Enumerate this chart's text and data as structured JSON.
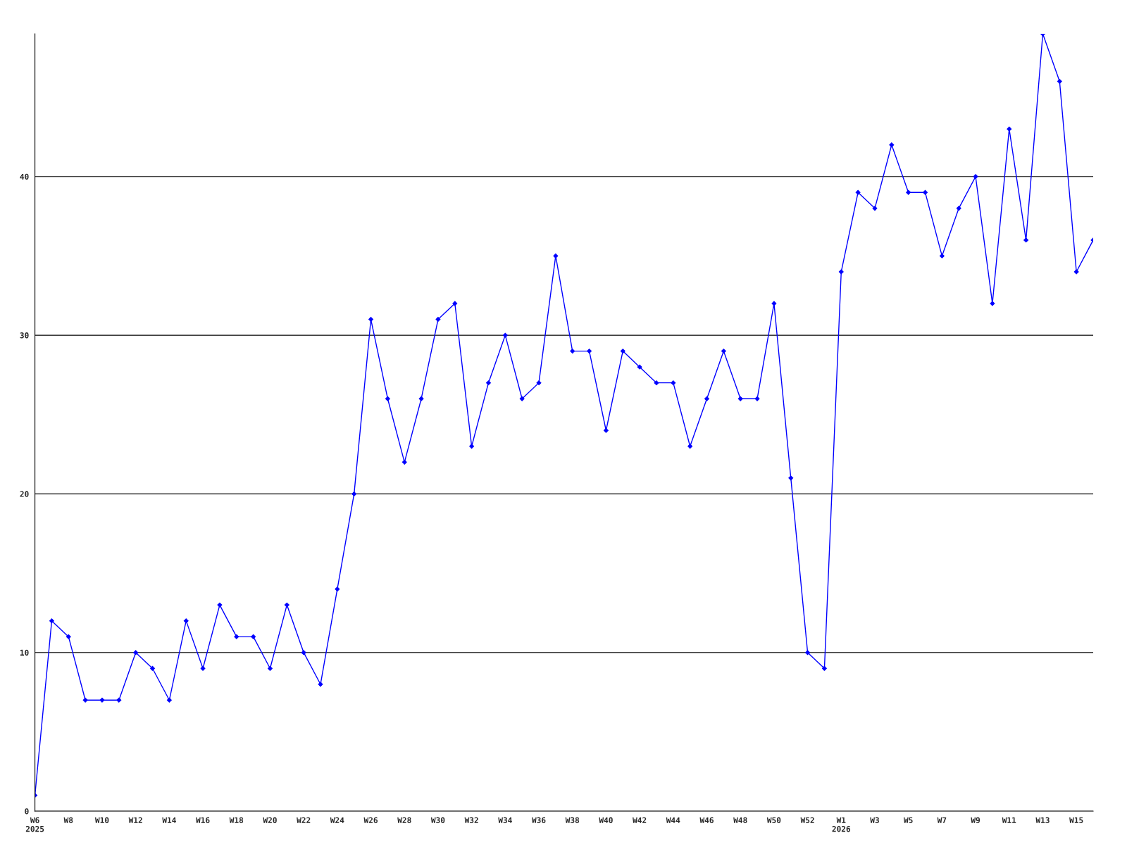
{
  "chart_data": {
    "type": "line",
    "categories": [
      "W6\n2025",
      null,
      "W8",
      null,
      "W10",
      null,
      "W12",
      null,
      "W14",
      null,
      "W16",
      null,
      "W18",
      null,
      "W20",
      null,
      "W22",
      null,
      "W24",
      null,
      "W26",
      null,
      "W28",
      null,
      "W30",
      null,
      "W32",
      null,
      "W34",
      null,
      "W36",
      null,
      "W38",
      null,
      "W40",
      null,
      "W42",
      null,
      "W44",
      null,
      "W46",
      null,
      "W48",
      null,
      "W50",
      null,
      "W52",
      null,
      "W1\n2026",
      null,
      "W3",
      null,
      "W5",
      null,
      "W7",
      null,
      "W9",
      null,
      "W11",
      null,
      "W13",
      null,
      "W15",
      null
    ],
    "series": [
      {
        "color": "#0000ff",
        "values": [
          1,
          12,
          11,
          7,
          7,
          7,
          10,
          9,
          7,
          12,
          9,
          13,
          11,
          11,
          9,
          13,
          10,
          8,
          14,
          20,
          31,
          26,
          22,
          26,
          31,
          32,
          23,
          27,
          30,
          26,
          27,
          35,
          29,
          29,
          24,
          29,
          28,
          27,
          27,
          23,
          26,
          29,
          26,
          26,
          32,
          21,
          10,
          9,
          34,
          39,
          38,
          42,
          39,
          39,
          35,
          38,
          40,
          32,
          43,
          36,
          49,
          46,
          34,
          36
        ]
      }
    ],
    "ylim": [
      0,
      49
    ],
    "yticks": [
      0,
      10,
      20,
      30,
      40
    ],
    "grid": "y",
    "marker": "diamond",
    "line_style": "solid"
  }
}
